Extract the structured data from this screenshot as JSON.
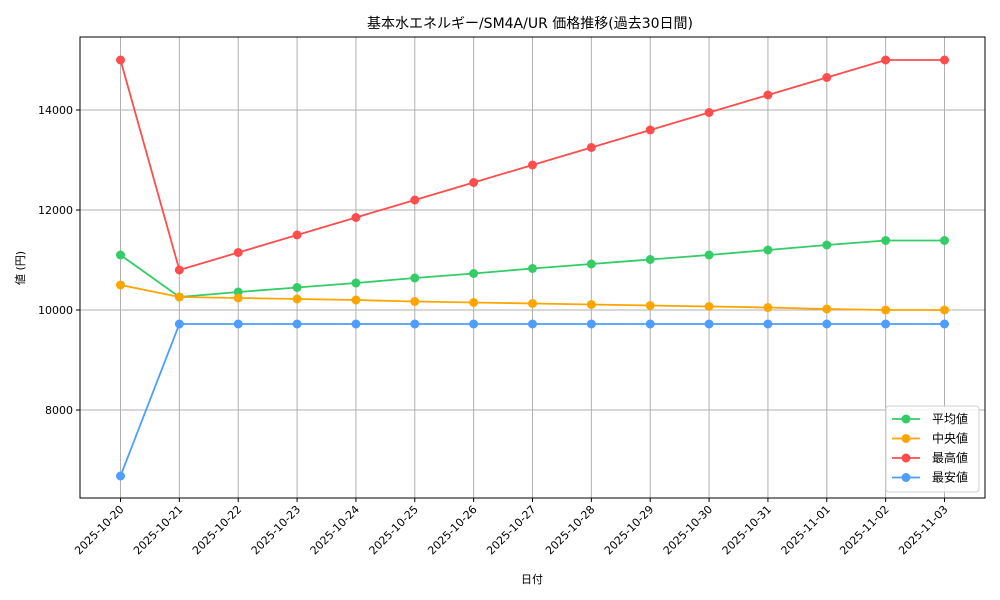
{
  "chart_data": {
    "type": "line",
    "title": "基本水エネルギー/SM4A/UR 価格推移(過去30日間)",
    "xlabel": "日付",
    "ylabel": "値 (円)",
    "ylim": [
      6250,
      15400
    ],
    "yticks": [
      8000,
      10000,
      12000,
      14000
    ],
    "grid": true,
    "legend_position": "lower right",
    "categories": [
      "2025-10-20",
      "2025-10-21",
      "2025-10-22",
      "2025-10-23",
      "2025-10-24",
      "2025-10-25",
      "2025-10-26",
      "2025-10-27",
      "2025-10-28",
      "2025-10-29",
      "2025-10-30",
      "2025-10-31",
      "2025-11-01",
      "2025-11-02",
      "2025-11-03"
    ],
    "series": [
      {
        "name": "平均値",
        "color": "#33cc66",
        "values": [
          11100,
          10260,
          10360,
          10450,
          10540,
          10640,
          10730,
          10830,
          10920,
          11010,
          11100,
          11200,
          11300,
          11390,
          11390
        ]
      },
      {
        "name": "中央値",
        "color": "#ffa500",
        "values": [
          10500,
          10260,
          10240,
          10220,
          10200,
          10170,
          10150,
          10130,
          10110,
          10090,
          10070,
          10050,
          10020,
          10000,
          10000
        ]
      },
      {
        "name": "最高値",
        "color": "#ff4d4d",
        "values": [
          15000,
          10800,
          11150,
          11500,
          11850,
          12200,
          12550,
          12900,
          13250,
          13600,
          13950,
          14300,
          14650,
          15000,
          15000
        ]
      },
      {
        "name": "最安値",
        "color": "#4d9eff",
        "values": [
          6680,
          9720,
          9720,
          9720,
          9720,
          9720,
          9720,
          9720,
          9720,
          9720,
          9720,
          9720,
          9720,
          9720,
          9720
        ]
      }
    ]
  }
}
